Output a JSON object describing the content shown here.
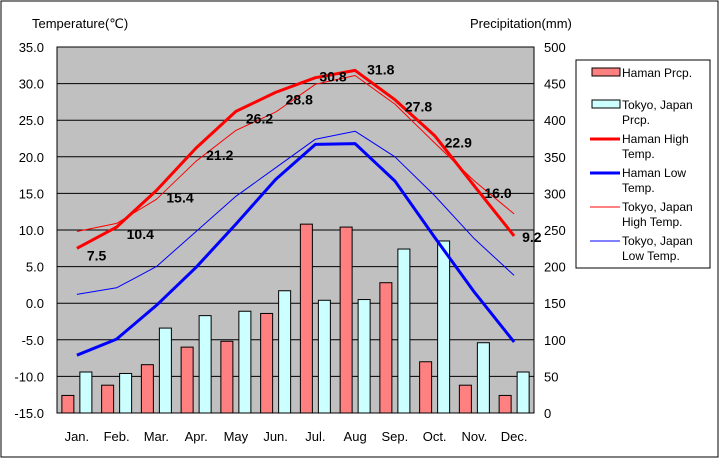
{
  "chart_data": {
    "type": "bar+line",
    "left_axis_title": "Temperature(℃)",
    "right_axis_title": "Precipitation(mm)",
    "left_axis": {
      "min": -15,
      "max": 35,
      "step": 5,
      "tick_labels": [
        "-15.0",
        "-10.0",
        "-5.0",
        "0.0",
        "5.0",
        "10.0",
        "15.0",
        "20.0",
        "25.0",
        "30.0",
        "35.0"
      ]
    },
    "right_axis": {
      "min": 0,
      "max": 500,
      "step": 50,
      "tick_labels": [
        "0",
        "50",
        "100",
        "150",
        "200",
        "250",
        "300",
        "350",
        "400",
        "450",
        "500"
      ]
    },
    "categories": [
      "Jan.",
      "Feb.",
      "Mar.",
      "Apr.",
      "May",
      "Jun.",
      "Jul.",
      "Aug",
      "Sep.",
      "Oct.",
      "Nov.",
      "Dec."
    ],
    "bar_series": [
      {
        "name": "Haman Prcp.",
        "color": "#ff8080",
        "values": [
          24,
          38,
          66,
          90,
          98,
          136,
          258,
          254,
          178,
          70,
          38,
          24
        ]
      },
      {
        "name": "Tokyo, Japan Prcp.",
        "color": "#ccffff",
        "values": [
          56,
          54,
          116,
          133,
          139,
          167,
          154,
          155,
          224,
          235,
          96,
          56
        ]
      }
    ],
    "line_series": [
      {
        "name": "Haman High Temp.",
        "color": "#ff0000",
        "width": "thick",
        "values": [
          7.5,
          10.4,
          15.4,
          21.2,
          26.2,
          28.8,
          30.8,
          31.8,
          27.8,
          22.9,
          16.0,
          9.2
        ],
        "labels": [
          "7.5",
          "10.4",
          "15.4",
          "21.2",
          "26.2",
          "28.8",
          "30.8",
          "31.8",
          "27.8",
          "22.9",
          "16.0",
          "9.2"
        ]
      },
      {
        "name": "Haman Low Temp.",
        "color": "#0000ff",
        "width": "thick",
        "values": [
          -7.1,
          -4.9,
          -0.3,
          4.9,
          10.8,
          16.9,
          21.7,
          21.8,
          16.7,
          9.0,
          1.5,
          -5.3
        ]
      },
      {
        "name": "Tokyo, Japan High Temp.",
        "color": "#ff0000",
        "width": "thin",
        "values": [
          9.8,
          10.9,
          14.2,
          19.4,
          23.6,
          26.1,
          29.9,
          31.1,
          27.2,
          21.9,
          16.7,
          12.2
        ]
      },
      {
        "name": "Tokyo, Japan Low Temp.",
        "color": "#0000ff",
        "width": "thin",
        "values": [
          1.2,
          2.1,
          5.0,
          9.8,
          14.6,
          18.5,
          22.4,
          23.5,
          20.0,
          14.7,
          8.8,
          3.8
        ]
      }
    ],
    "legend": {
      "position": "right",
      "entries": [
        {
          "lines": [
            "Haman Prcp."
          ],
          "kind": "bar",
          "color": "#ff8080"
        },
        {
          "lines": [
            "Tokyo, Japan",
            "Prcp."
          ],
          "kind": "bar",
          "color": "#ccffff"
        },
        {
          "lines": [
            "Haman High",
            "Temp."
          ],
          "kind": "line",
          "color": "#ff0000",
          "width": "thick"
        },
        {
          "lines": [
            "Haman Low",
            "Temp."
          ],
          "kind": "line",
          "color": "#0000ff",
          "width": "thick"
        },
        {
          "lines": [
            "Tokyo, Japan",
            "High Temp."
          ],
          "kind": "line",
          "color": "#ff0000",
          "width": "thin"
        },
        {
          "lines": [
            "Tokyo, Japan",
            "Low Temp."
          ],
          "kind": "line",
          "color": "#0000ff",
          "width": "thin"
        }
      ]
    },
    "plot_background": "#c0c0c0",
    "grid": true
  }
}
